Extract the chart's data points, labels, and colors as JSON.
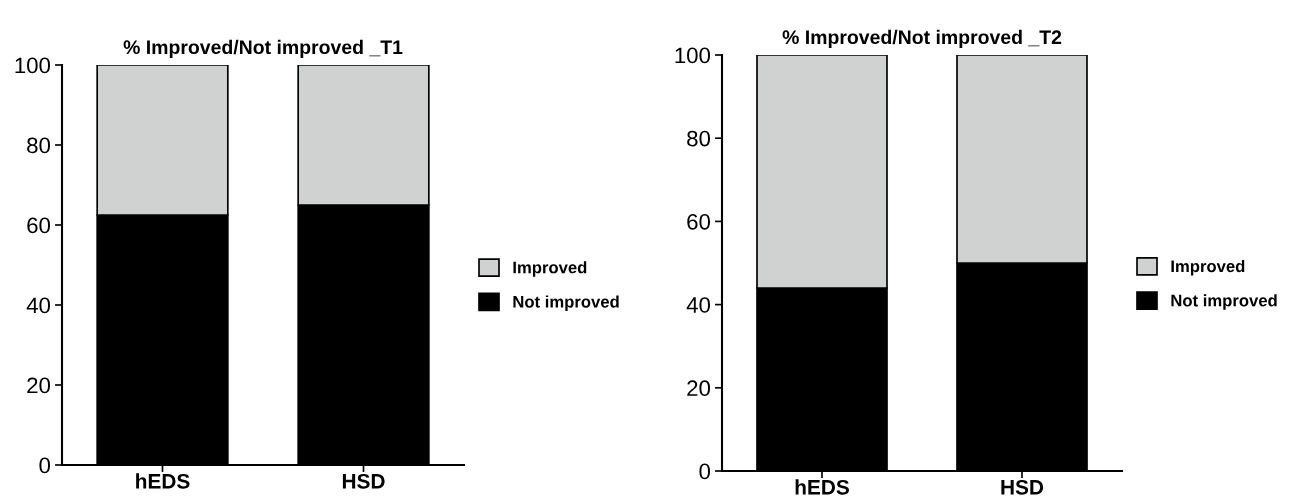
{
  "chart_data": [
    {
      "type": "bar",
      "title": "% Improved/Not improved _T1",
      "categories": [
        "hEDS",
        "HSD"
      ],
      "stacked": true,
      "ylim": [
        0,
        100
      ],
      "yticks": [
        0,
        20,
        40,
        60,
        80,
        100
      ],
      "grid": false,
      "legend": "right",
      "series": [
        {
          "name": "Not improved",
          "color": "#000000",
          "values": [
            62.5,
            65
          ]
        },
        {
          "name": "Improved",
          "color": "#d0d2d1",
          "values": [
            37.5,
            35
          ]
        }
      ]
    },
    {
      "type": "bar",
      "title": "% Improved/Not improved _T2",
      "categories": [
        "hEDS",
        "HSD"
      ],
      "stacked": true,
      "ylim": [
        0,
        100
      ],
      "yticks": [
        0,
        20,
        40,
        60,
        80,
        100
      ],
      "grid": false,
      "legend": "right",
      "series": [
        {
          "name": "Not improved",
          "color": "#000000",
          "values": [
            44,
            50
          ]
        },
        {
          "name": "Improved",
          "color": "#d0d2d1",
          "values": [
            56,
            50
          ]
        }
      ]
    }
  ]
}
